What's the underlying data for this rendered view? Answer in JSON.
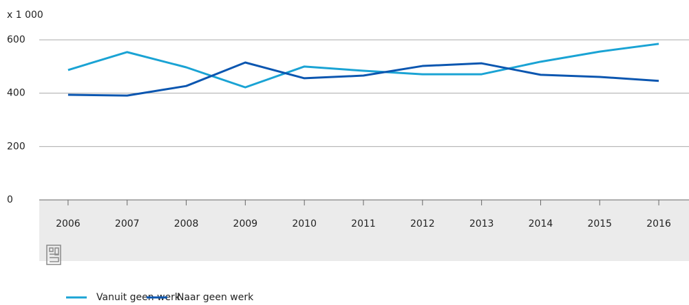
{
  "chart_data": {
    "type": "line",
    "y_unit_label": "x 1 000",
    "categories": [
      "2006",
      "2007",
      "2008",
      "2009",
      "2010",
      "2011",
      "2012",
      "2013",
      "2014",
      "2015",
      "2016"
    ],
    "series": [
      {
        "name": "Vanuit geen werk",
        "color": "#1aa3d4",
        "values": [
          487,
          554,
          497,
          422,
          500,
          484,
          471,
          471,
          518,
          556,
          585
        ]
      },
      {
        "name": "Naar geen werk",
        "color": "#0b56b0",
        "values": [
          394,
          391,
          427,
          515,
          456,
          466,
          502,
          512,
          469,
          461,
          446
        ]
      }
    ],
    "ylim": [
      0,
      600
    ],
    "yticks": [
      0,
      200,
      400,
      600
    ],
    "grid": true,
    "legend": "bottom-left"
  }
}
